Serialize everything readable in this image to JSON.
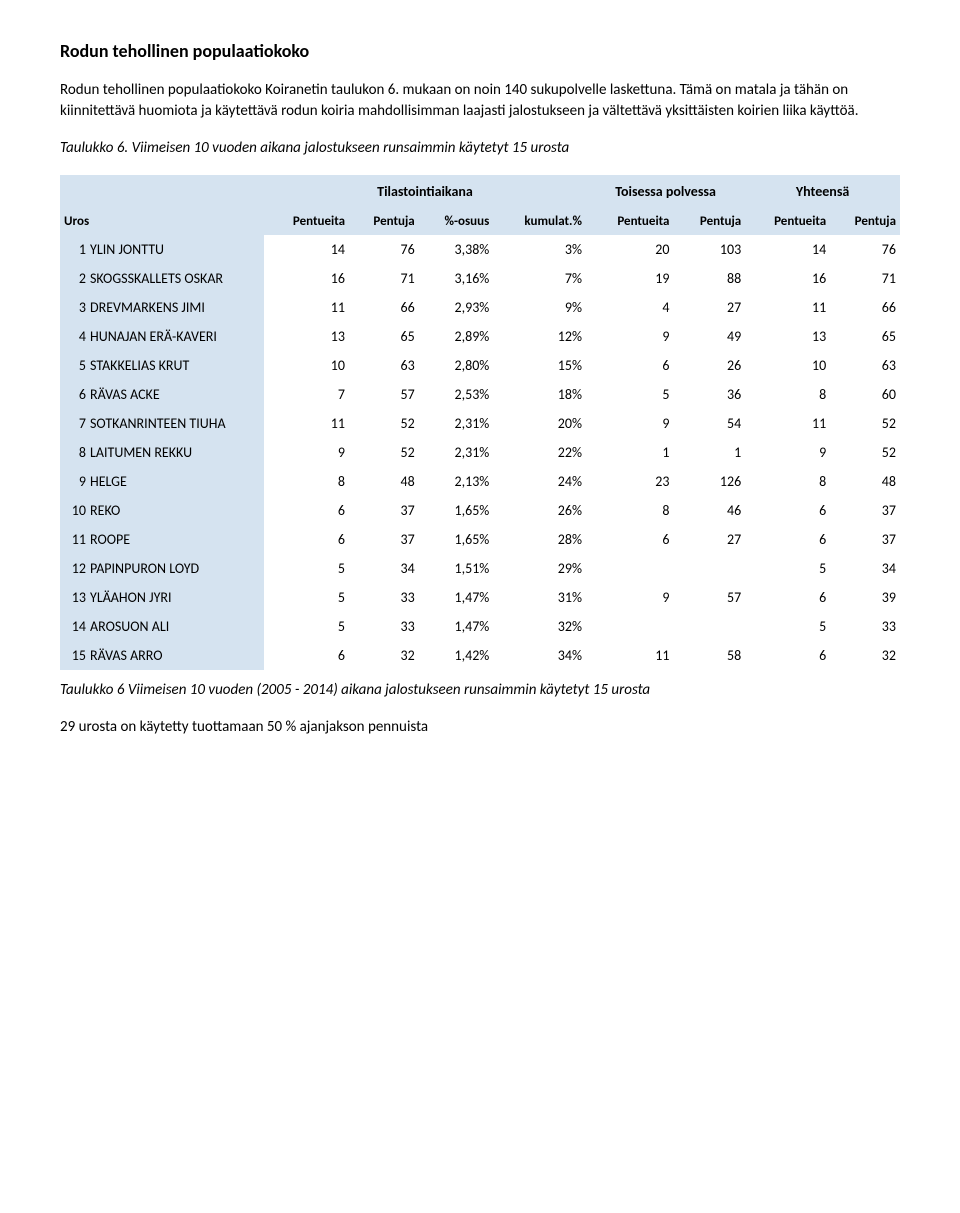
{
  "heading": "Rodun tehollinen populaatiokoko",
  "para1": "Rodun tehollinen populaatiokoko Koiranetin taulukon 6. mukaan on noin 140 sukupolvelle laskettuna. Tämä on matala ja tähän on kiinnitettävä huomiota ja käytettävä rodun koiria mahdollisimman laajasti jalostukseen ja vältettävä yksittäisten koirien liika käyttöä.",
  "tableTitle": "Taulukko 6. Viimeisen 10 vuoden aikana jalostukseen runsaimmin käytetyt 15 urosta",
  "groupHeaders": {
    "blank": "",
    "tila": "Tilastointiaikana",
    "toisessa": "Toisessa polvessa",
    "yhteensa": "Yhteensä"
  },
  "colHeaders": {
    "uros": "Uros",
    "pentueita": "Pentueita",
    "pentuja": "Pentuja",
    "osuus": "%-osuus",
    "kumulat": "kumulat.%"
  },
  "rows": [
    {
      "rank": "1",
      "name": "YLIN JONTTU",
      "c1": "14",
      "c2": "76",
      "c3": "3,38%",
      "c4": "3%",
      "c5": "20",
      "c6": "103",
      "c7": "14",
      "c8": "76"
    },
    {
      "rank": "2",
      "name": "SKOGSSKALLETS OSKAR",
      "c1": "16",
      "c2": "71",
      "c3": "3,16%",
      "c4": "7%",
      "c5": "19",
      "c6": "88",
      "c7": "16",
      "c8": "71"
    },
    {
      "rank": "3",
      "name": "DREVMARKENS JIMI",
      "c1": "11",
      "c2": "66",
      "c3": "2,93%",
      "c4": "9%",
      "c5": "4",
      "c6": "27",
      "c7": "11",
      "c8": "66"
    },
    {
      "rank": "4",
      "name": "HUNAJAN ERÄ-KAVERI",
      "c1": "13",
      "c2": "65",
      "c3": "2,89%",
      "c4": "12%",
      "c5": "9",
      "c6": "49",
      "c7": "13",
      "c8": "65"
    },
    {
      "rank": "5",
      "name": "STAKKELIAS KRUT",
      "c1": "10",
      "c2": "63",
      "c3": "2,80%",
      "c4": "15%",
      "c5": "6",
      "c6": "26",
      "c7": "10",
      "c8": "63"
    },
    {
      "rank": "6",
      "name": "RÄVAS ACKE",
      "c1": "7",
      "c2": "57",
      "c3": "2,53%",
      "c4": "18%",
      "c5": "5",
      "c6": "36",
      "c7": "8",
      "c8": "60"
    },
    {
      "rank": "7",
      "name": "SOTKANRINTEEN TIUHA",
      "c1": "11",
      "c2": "52",
      "c3": "2,31%",
      "c4": "20%",
      "c5": "9",
      "c6": "54",
      "c7": "11",
      "c8": "52"
    },
    {
      "rank": "8",
      "name": "LAITUMEN REKKU",
      "c1": "9",
      "c2": "52",
      "c3": "2,31%",
      "c4": "22%",
      "c5": "1",
      "c6": "1",
      "c7": "9",
      "c8": "52"
    },
    {
      "rank": "9",
      "name": "HELGE",
      "c1": "8",
      "c2": "48",
      "c3": "2,13%",
      "c4": "24%",
      "c5": "23",
      "c6": "126",
      "c7": "8",
      "c8": "48"
    },
    {
      "rank": "10",
      "name": "REKO",
      "c1": "6",
      "c2": "37",
      "c3": "1,65%",
      "c4": "26%",
      "c5": "8",
      "c6": "46",
      "c7": "6",
      "c8": "37"
    },
    {
      "rank": "11",
      "name": "ROOPE",
      "c1": "6",
      "c2": "37",
      "c3": "1,65%",
      "c4": "28%",
      "c5": "6",
      "c6": "27",
      "c7": "6",
      "c8": "37"
    },
    {
      "rank": "12",
      "name": "PAPINPURON LOYD",
      "c1": "5",
      "c2": "34",
      "c3": "1,51%",
      "c4": "29%",
      "c5": "",
      "c6": "",
      "c7": "5",
      "c8": "34"
    },
    {
      "rank": "13",
      "name": "YLÄAHON JYRI",
      "c1": "5",
      "c2": "33",
      "c3": "1,47%",
      "c4": "31%",
      "c5": "9",
      "c6": "57",
      "c7": "6",
      "c8": "39"
    },
    {
      "rank": "14",
      "name": "AROSUON ALI",
      "c1": "5",
      "c2": "33",
      "c3": "1,47%",
      "c4": "32%",
      "c5": "",
      "c6": "",
      "c7": "5",
      "c8": "33"
    },
    {
      "rank": "15",
      "name": "RÄVAS ARRO",
      "c1": "6",
      "c2": "32",
      "c3": "1,42%",
      "c4": "34%",
      "c5": "11",
      "c6": "58",
      "c7": "6",
      "c8": "32"
    }
  ],
  "caption": "Taulukko 6 Viimeisen 10 vuoden (2005 - 2014) aikana jalostukseen runsaimmin käytetyt 15 urosta",
  "footer": "29 urosta on käytetty tuottamaan 50 % ajanjakson pennuista"
}
